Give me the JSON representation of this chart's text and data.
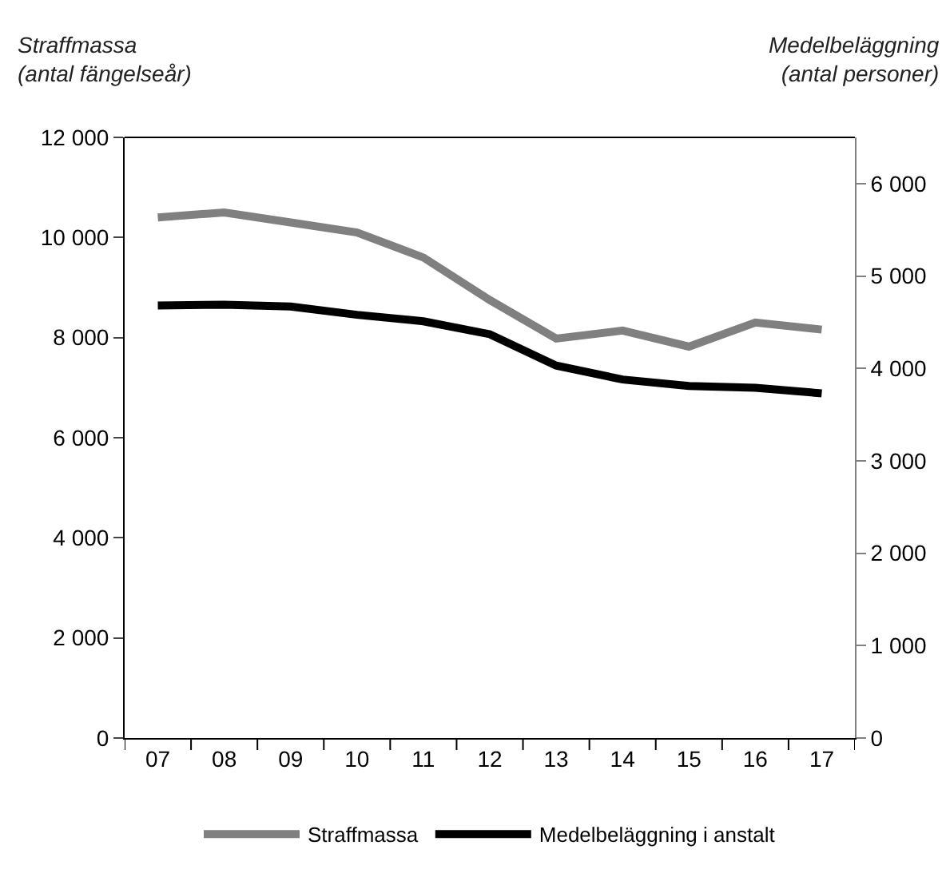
{
  "chart_data": {
    "type": "line",
    "ylabel": "Straffmassa\n(antal fängelseår)",
    "y2label": "Medelbeläggning\n(antal personer)",
    "categories": [
      "07",
      "08",
      "09",
      "10",
      "11",
      "12",
      "13",
      "14",
      "15",
      "16",
      "17"
    ],
    "series": [
      {
        "name": "Straffmassa",
        "color": "#808080",
        "values": [
          10400,
          10500,
          10300,
          10100,
          9600,
          8750,
          7980,
          8140,
          7820,
          8300,
          8160
        ]
      },
      {
        "name": "Medelbeläggning i anstalt",
        "color": "#000000",
        "axis": "y2",
        "values": [
          4680,
          4690,
          4670,
          4580,
          4510,
          4370,
          4030,
          3880,
          3810,
          3790,
          3730
        ]
      }
    ],
    "ylim": [
      0,
      12000
    ],
    "yticks": [
      {
        "value": 0,
        "label": "0"
      },
      {
        "value": 2000,
        "label": "2 000"
      },
      {
        "value": 4000,
        "label": "4 000"
      },
      {
        "value": 6000,
        "label": "6 000"
      },
      {
        "value": 8000,
        "label": "8 000"
      },
      {
        "value": 10000,
        "label": "10 000"
      },
      {
        "value": 12000,
        "label": "12 000"
      }
    ],
    "y2lim": [
      0,
      6500
    ],
    "y2ticks": [
      {
        "value": 0,
        "label": "0"
      },
      {
        "value": 1000,
        "label": "1 000"
      },
      {
        "value": 2000,
        "label": "2 000"
      },
      {
        "value": 3000,
        "label": "3 000"
      },
      {
        "value": 4000,
        "label": "4 000"
      },
      {
        "value": 5000,
        "label": "5 000"
      },
      {
        "value": 6000,
        "label": "6 000"
      }
    ],
    "legend": "bottom",
    "marker": "none",
    "line_style": "solid"
  }
}
